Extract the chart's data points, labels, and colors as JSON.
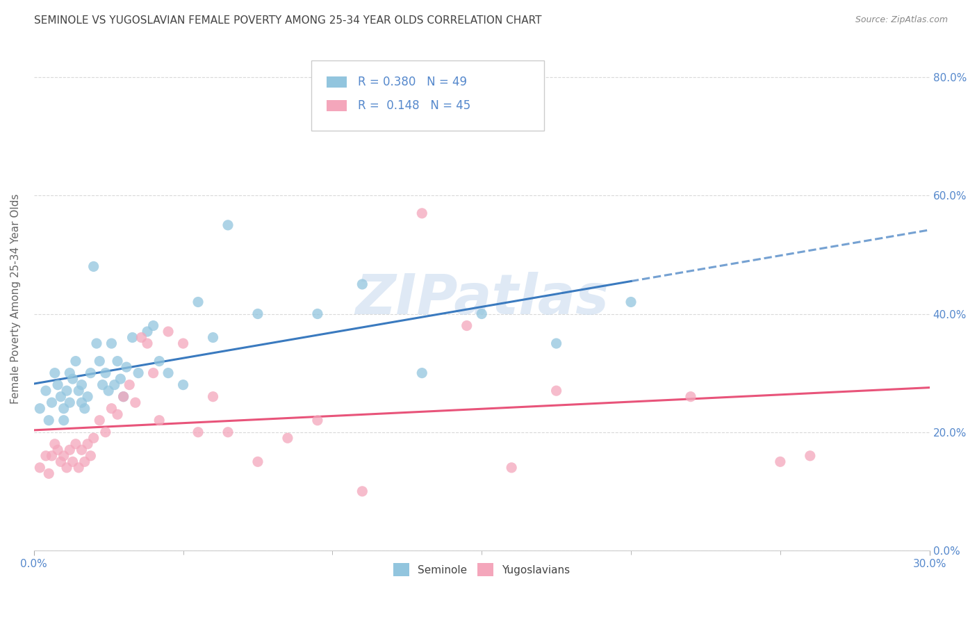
{
  "title": "SEMINOLE VS YUGOSLAVIAN FEMALE POVERTY AMONG 25-34 YEAR OLDS CORRELATION CHART",
  "source": "Source: ZipAtlas.com",
  "xlim": [
    0.0,
    0.3
  ],
  "ylim": [
    0.0,
    0.85
  ],
  "watermark": "ZIPatlas",
  "seminole_color": "#92c5de",
  "yugoslavian_color": "#f4a6bb",
  "trend_seminole_color": "#3a7abf",
  "trend_yugoslavian_color": "#e8547a",
  "background_color": "#ffffff",
  "grid_color": "#d0d0d0",
  "right_tick_color": "#5588cc",
  "title_color": "#444444",
  "seminole_scatter_x": [
    0.002,
    0.004,
    0.005,
    0.006,
    0.007,
    0.008,
    0.009,
    0.01,
    0.01,
    0.011,
    0.012,
    0.012,
    0.013,
    0.014,
    0.015,
    0.016,
    0.016,
    0.017,
    0.018,
    0.019,
    0.02,
    0.021,
    0.022,
    0.023,
    0.024,
    0.025,
    0.026,
    0.027,
    0.028,
    0.029,
    0.03,
    0.031,
    0.033,
    0.035,
    0.038,
    0.04,
    0.042,
    0.045,
    0.05,
    0.055,
    0.06,
    0.065,
    0.075,
    0.095,
    0.11,
    0.13,
    0.15,
    0.175,
    0.2
  ],
  "seminole_scatter_y": [
    0.24,
    0.27,
    0.22,
    0.25,
    0.3,
    0.28,
    0.26,
    0.22,
    0.24,
    0.27,
    0.25,
    0.3,
    0.29,
    0.32,
    0.27,
    0.25,
    0.28,
    0.24,
    0.26,
    0.3,
    0.48,
    0.35,
    0.32,
    0.28,
    0.3,
    0.27,
    0.35,
    0.28,
    0.32,
    0.29,
    0.26,
    0.31,
    0.36,
    0.3,
    0.37,
    0.38,
    0.32,
    0.3,
    0.28,
    0.42,
    0.36,
    0.55,
    0.4,
    0.4,
    0.45,
    0.3,
    0.4,
    0.35,
    0.42
  ],
  "yugoslavian_scatter_x": [
    0.002,
    0.004,
    0.005,
    0.006,
    0.007,
    0.008,
    0.009,
    0.01,
    0.011,
    0.012,
    0.013,
    0.014,
    0.015,
    0.016,
    0.017,
    0.018,
    0.019,
    0.02,
    0.022,
    0.024,
    0.026,
    0.028,
    0.03,
    0.032,
    0.034,
    0.036,
    0.038,
    0.04,
    0.042,
    0.045,
    0.05,
    0.055,
    0.06,
    0.065,
    0.075,
    0.085,
    0.095,
    0.11,
    0.13,
    0.145,
    0.16,
    0.175,
    0.22,
    0.25,
    0.26
  ],
  "yugoslavian_scatter_y": [
    0.14,
    0.16,
    0.13,
    0.16,
    0.18,
    0.17,
    0.15,
    0.16,
    0.14,
    0.17,
    0.15,
    0.18,
    0.14,
    0.17,
    0.15,
    0.18,
    0.16,
    0.19,
    0.22,
    0.2,
    0.24,
    0.23,
    0.26,
    0.28,
    0.25,
    0.36,
    0.35,
    0.3,
    0.22,
    0.37,
    0.35,
    0.2,
    0.26,
    0.2,
    0.15,
    0.19,
    0.22,
    0.1,
    0.57,
    0.38,
    0.14,
    0.27,
    0.26,
    0.15,
    0.16
  ]
}
